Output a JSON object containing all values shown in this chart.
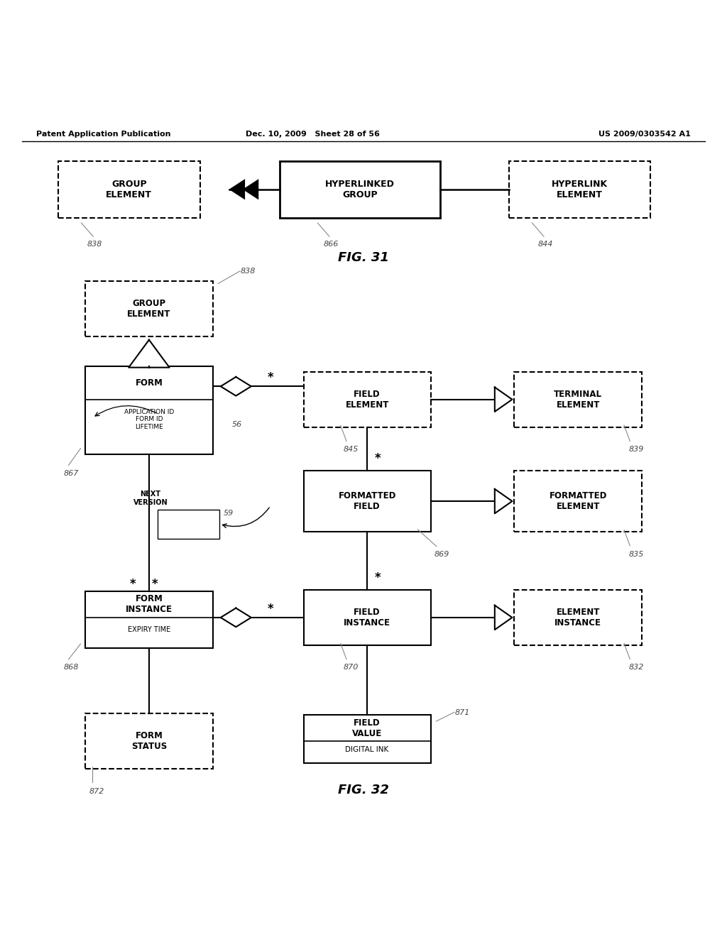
{
  "fig_width": 10.24,
  "fig_height": 13.2,
  "bg_color": "#ffffff",
  "header_left": "Patent Application Publication",
  "header_mid": "Dec. 10, 2009   Sheet 28 of 56",
  "header_right": "US 2009/0303542 A1",
  "fig31_label": "FIG. 31",
  "fig32_label": "FIG. 32"
}
